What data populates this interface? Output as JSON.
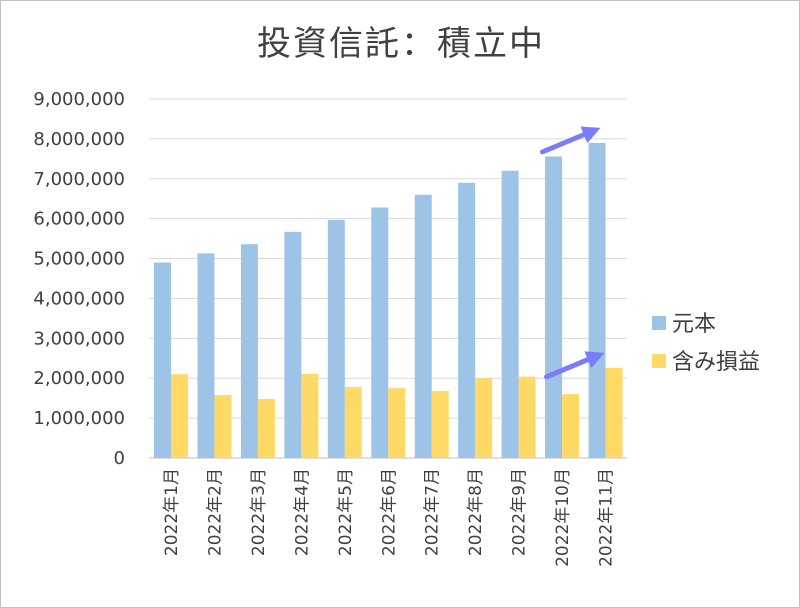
{
  "chart_data": {
    "type": "bar",
    "title": "投資信託：積立中",
    "categories": [
      "2022年1月",
      "2022年2月",
      "2022年3月",
      "2022年4月",
      "2022年5月",
      "2022年6月",
      "2022年7月",
      "2022年8月",
      "2022年9月",
      "2022年10月",
      "2022年11月"
    ],
    "series": [
      {
        "name": "元本",
        "color": "#9dc3e6",
        "values": [
          4900000,
          5130000,
          5360000,
          5670000,
          5970000,
          6280000,
          6600000,
          6900000,
          7200000,
          7560000,
          7900000
        ]
      },
      {
        "name": "含み損益",
        "color": "#ffd966",
        "values": [
          2100000,
          1580000,
          1480000,
          2110000,
          1780000,
          1750000,
          1680000,
          2000000,
          2040000,
          1600000,
          2260000
        ]
      }
    ],
    "ylim": [
      0,
      9000000
    ],
    "yticks": [
      "0",
      "1,000,000",
      "2,000,000",
      "3,000,000",
      "4,000,000",
      "5,000,000",
      "6,000,000",
      "7,000,000",
      "8,000,000",
      "9,000,000"
    ],
    "grid": true,
    "legend": "right",
    "annotations": [
      {
        "type": "arrow",
        "color": "#7b7bff",
        "near_category": "2022年11月",
        "near_series": "元本"
      },
      {
        "type": "arrow",
        "color": "#7b7bff",
        "near_category": "2022年11月",
        "near_series": "含み損益"
      }
    ]
  }
}
